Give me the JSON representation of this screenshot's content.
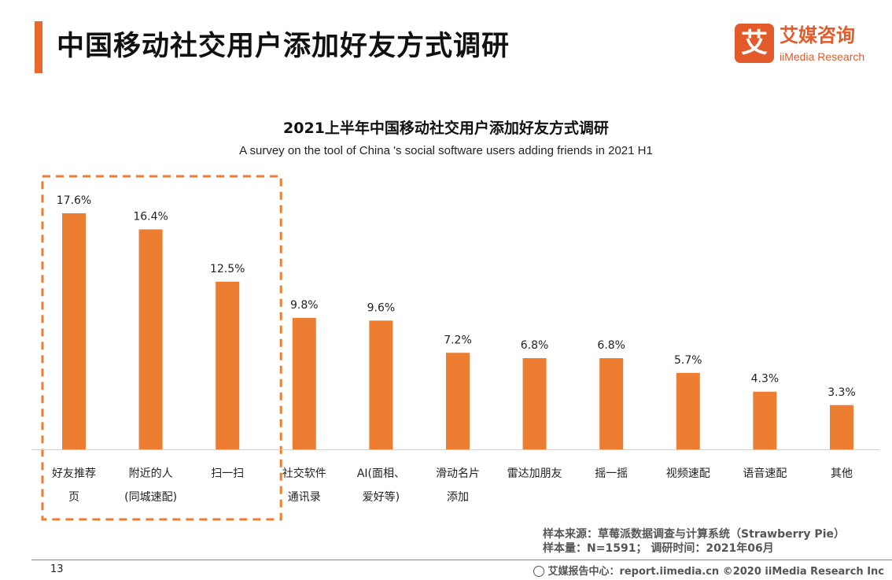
{
  "header": {
    "title": "中国移动社交用户添加好友方式调研",
    "logo_mark": "艾",
    "logo_cn": "艾媒咨询",
    "logo_en": "iiMedia Research"
  },
  "chart_data": {
    "type": "bar",
    "title": "2021上半年中国移动社交用户添加好友方式调研",
    "subtitle": "A survey on the tool of China 's social software users adding friends in 2021 H1",
    "categories": [
      [
        "好友推荐",
        "页"
      ],
      [
        "附近的人",
        "(同城速配)"
      ],
      [
        "扫一扫"
      ],
      [
        "社交软件",
        "通讯录"
      ],
      [
        "AI(面相、",
        "爱好等)"
      ],
      [
        "滑动名片",
        "添加"
      ],
      [
        "雷达加朋友"
      ],
      [
        "摇一摇"
      ],
      [
        "视频速配"
      ],
      [
        "语音速配"
      ],
      [
        "其他"
      ]
    ],
    "values": [
      17.6,
      16.4,
      12.5,
      9.8,
      9.6,
      7.2,
      6.8,
      6.8,
      5.7,
      4.3,
      3.3
    ],
    "value_labels": [
      "17.6%",
      "16.4%",
      "12.5%",
      "9.8%",
      "9.6%",
      "7.2%",
      "6.8%",
      "6.8%",
      "5.7%",
      "4.3%",
      "3.3%"
    ],
    "ylim": [
      0,
      17.6
    ],
    "highlighted_indices": [
      0,
      1,
      2
    ],
    "bar_color": "#ED7D31"
  },
  "source": {
    "line1": "样本来源：草莓派数据调查与计算系统（Strawberry  Pie）",
    "line2": "样本量：N=1591；  调研时间：2021年06月"
  },
  "footer": {
    "page_number": "13",
    "right_text": "艾媒报告中心：report.iimedia.cn   ©2020  iiMedia Research  Inc"
  },
  "colors": {
    "accent": "#E8682D",
    "brand": "#E35A2B",
    "highlight_border": "#ED7D31"
  }
}
